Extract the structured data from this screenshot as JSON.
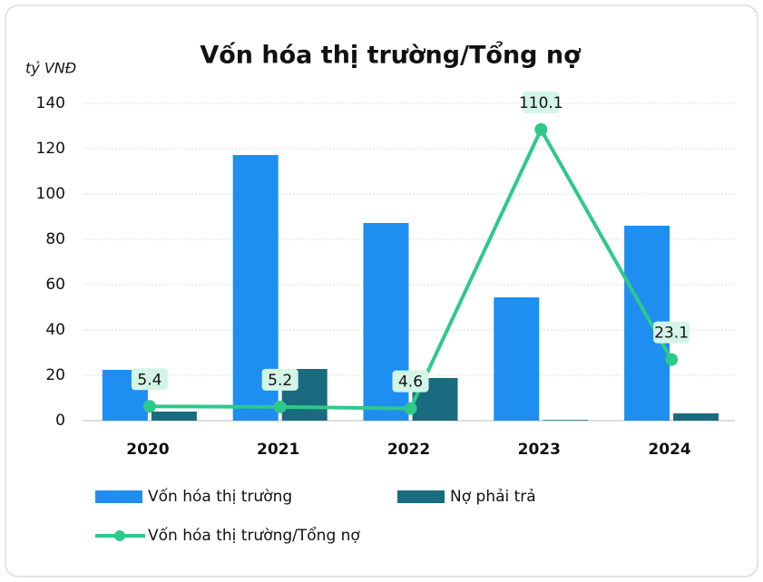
{
  "chart_data": {
    "type": "bar",
    "title": "Vốn hóa thị trường/Tổng nợ",
    "ylabel": "tỷ VNĐ",
    "categories": [
      "2020",
      "2021",
      "2022",
      "2023",
      "2024"
    ],
    "series": [
      {
        "name": "Vốn hóa thị trường",
        "color": "#1e8ef0",
        "type": "bar",
        "values": [
          22.4,
          117.2,
          87.2,
          54.4,
          86
        ]
      },
      {
        "name": "Nợ phải trả",
        "color": "#1a6b80",
        "type": "bar",
        "values": [
          4,
          22.8,
          18.8,
          0.3,
          3.2
        ]
      },
      {
        "name": "Vốn hóa thị trường/Tổng nợ",
        "color": "#2ec98a",
        "type": "line",
        "axis": "y2",
        "values": [
          5.4,
          5.2,
          4.6,
          110.1,
          23.1
        ]
      }
    ],
    "ylim": [
      0,
      140
    ],
    "yticks": [
      0,
      20,
      40,
      60,
      80,
      100,
      120,
      140
    ],
    "y2lim": [
      0,
      120
    ],
    "grid": true
  }
}
